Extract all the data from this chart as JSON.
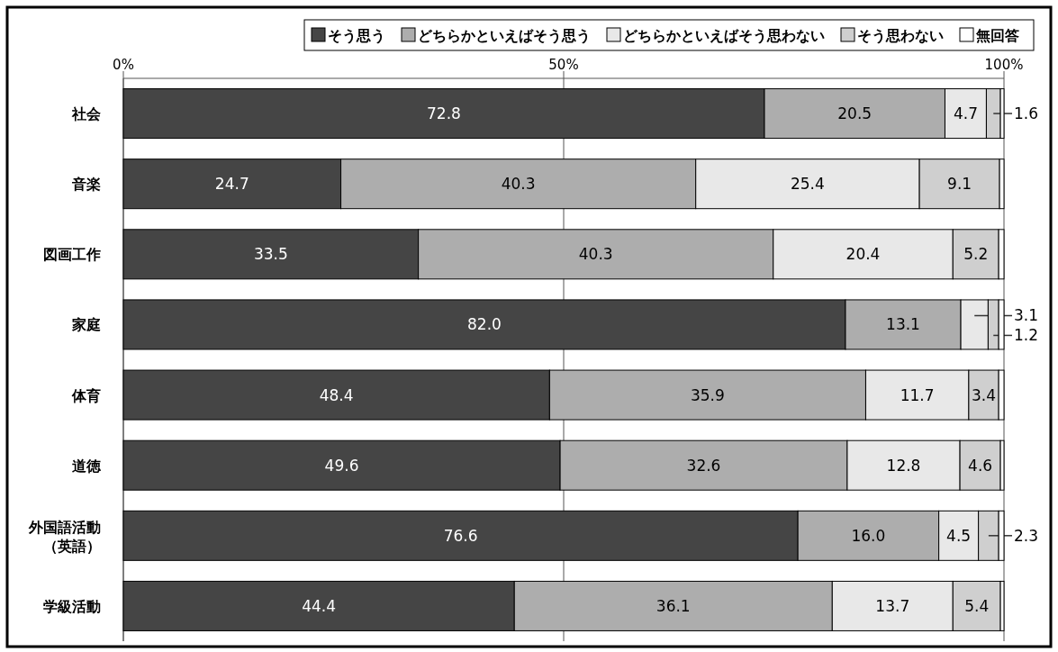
{
  "chart_data": {
    "type": "bar",
    "orientation": "horizontal",
    "stacked": true,
    "categories": [
      "社会",
      "音楽",
      "図画工作",
      "家庭",
      "体育",
      "道徳",
      "外国語活動（英語）",
      "学級活動"
    ],
    "series": [
      {
        "name": "そう思う",
        "color": "#454545",
        "values": [
          72.8,
          24.7,
          33.5,
          82.0,
          48.4,
          49.6,
          76.6,
          44.4
        ],
        "value_labels": [
          "72.8",
          "24.7",
          "33.5",
          "82.0",
          "48.4",
          "49.6",
          "76.6",
          "44.4"
        ]
      },
      {
        "name": "どちらかといえばそう思う",
        "color": "#adadad",
        "values": [
          20.5,
          40.3,
          40.3,
          13.1,
          35.9,
          32.6,
          16.0,
          36.1
        ],
        "value_labels": [
          "20.5",
          "40.3",
          "40.3",
          "13.1",
          "35.9",
          "32.6",
          "16.0",
          "36.1"
        ]
      },
      {
        "name": "どちらかといえばそう思わない",
        "color": "#e8e8e8",
        "values": [
          4.7,
          25.4,
          20.4,
          3.1,
          11.7,
          12.8,
          4.5,
          13.7
        ],
        "value_labels": [
          "4.7",
          "25.4",
          "20.4",
          "3.1",
          "11.7",
          "12.8",
          "4.5",
          "13.7"
        ]
      },
      {
        "name": "そう思わない",
        "color": "#cfcfcf",
        "values": [
          1.6,
          9.1,
          5.2,
          1.2,
          3.4,
          4.6,
          2.3,
          5.4
        ],
        "value_labels": [
          "1.6",
          "9.1",
          "5.2",
          "1.2",
          "3.4",
          "4.6",
          "2.3",
          "5.4"
        ]
      },
      {
        "name": "無回答",
        "color": "#ffffff",
        "values": [
          0.4,
          0.5,
          0.6,
          0.6,
          0.6,
          0.4,
          0.6,
          0.4
        ],
        "value_labels": [
          null,
          null,
          null,
          null,
          null,
          null,
          null,
          null
        ]
      }
    ],
    "xlim": [
      0,
      100
    ],
    "xticks": [
      {
        "value": 0,
        "label": "0%"
      },
      {
        "value": 50,
        "label": "50%"
      },
      {
        "value": 100,
        "label": "100%"
      }
    ],
    "grid": "x",
    "legend": "top right"
  }
}
